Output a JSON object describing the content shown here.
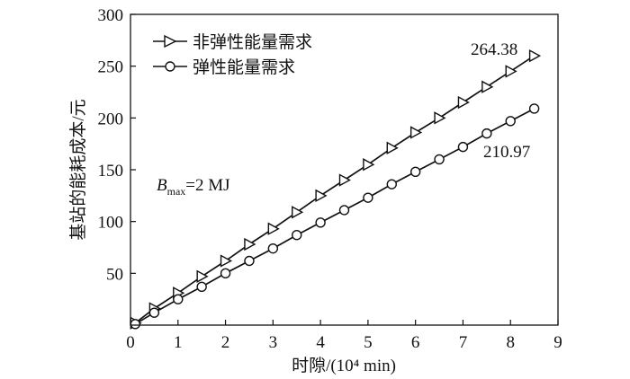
{
  "chart_data": {
    "type": "line",
    "xlabel": "时隙/(10⁴ min)",
    "ylabel": "基站的能耗成本/元",
    "xlim": [
      0,
      9
    ],
    "ylim": [
      0,
      300
    ],
    "x_ticks": [
      "0",
      "1",
      "2",
      "3",
      "4",
      "5",
      "6",
      "7",
      "8",
      "9"
    ],
    "y_ticks": [
      "50",
      "100",
      "150",
      "200",
      "250",
      "300"
    ],
    "grid": false,
    "legend_position": "top-left",
    "series": [
      {
        "name": "非弹性能量需求",
        "marker": "triangle-right",
        "x": [
          0.1,
          0.5,
          1.0,
          1.5,
          2.0,
          2.5,
          3.0,
          3.5,
          4.0,
          4.5,
          5.0,
          5.5,
          6.0,
          6.5,
          7.0,
          7.5,
          8.0,
          8.5
        ],
        "y": [
          2,
          16,
          31,
          47,
          62,
          78,
          93,
          109,
          125,
          140,
          155,
          171,
          186,
          200,
          215,
          230,
          245,
          260
        ]
      },
      {
        "name": "弹性能量需求",
        "marker": "circle",
        "x": [
          0.1,
          0.5,
          1.0,
          1.5,
          2.0,
          2.5,
          3.0,
          3.5,
          4.0,
          4.5,
          5.0,
          5.5,
          6.0,
          6.5,
          7.0,
          7.5,
          8.0,
          8.5
        ],
        "y": [
          1,
          12,
          25,
          37,
          50,
          62,
          74,
          87,
          99,
          111,
          123,
          136,
          148,
          160,
          172,
          185,
          197,
          209
        ]
      }
    ],
    "annotations": {
      "bmax_base": "B",
      "bmax_sub": "max",
      "bmax_rest": "=2 MJ",
      "end_label_1": "264.38",
      "end_label_2": "210.97"
    }
  }
}
